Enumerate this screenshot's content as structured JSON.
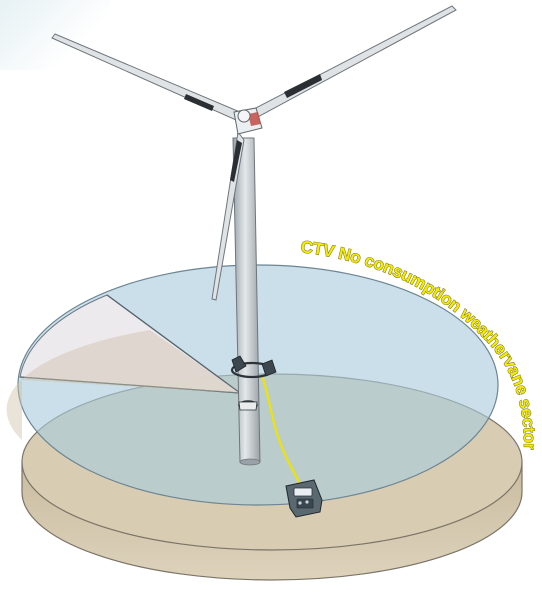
{
  "sector_label": "CTV No consumption weathervane sector",
  "colors": {
    "seabed": "#d6c9ad",
    "water": "#a9ccdc",
    "blocked_sector": "#ece7ea",
    "label_fill": "#f2ec00",
    "label_stroke": "#6b5a1d",
    "cable": "#f0e500",
    "turbine": "#c9cfd3"
  },
  "icons": [
    "wind-turbine-icon",
    "vessel-icon",
    "mooring-buoy-icon"
  ]
}
